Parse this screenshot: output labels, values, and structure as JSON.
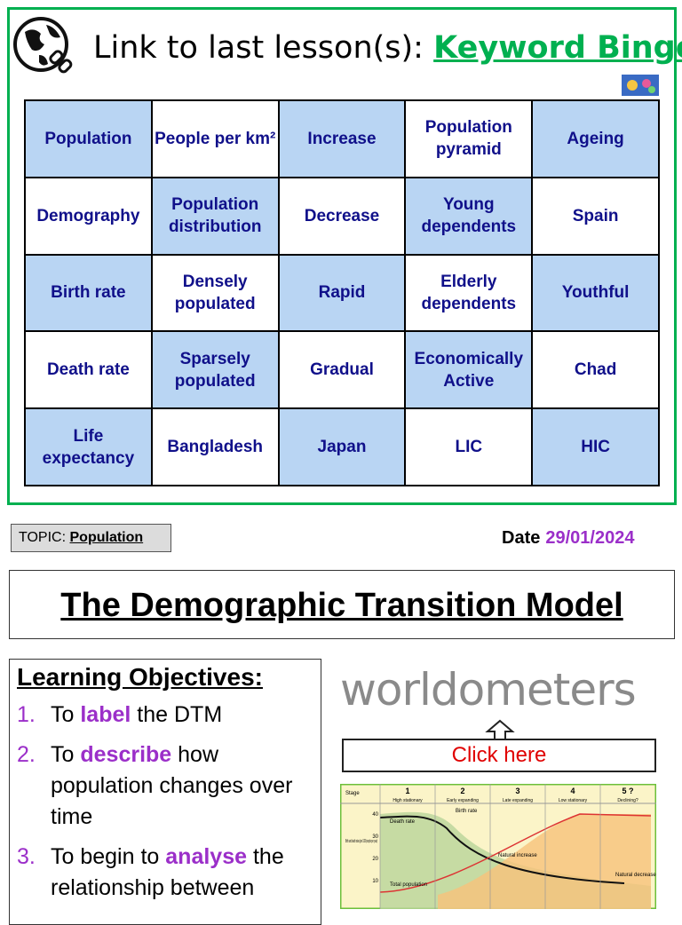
{
  "header": {
    "lead": "Link to last lesson(s):",
    "link": "Keyword Bingo"
  },
  "bingo": {
    "rows": [
      [
        "Population",
        "People per km²",
        "Increase",
        "Population pyramid",
        "Ageing"
      ],
      [
        "Demography",
        "Population distribution",
        "Decrease",
        "Young dependents",
        "Spain"
      ],
      [
        "Birth rate",
        "Densely populated",
        "Rapid",
        "Elderly dependents",
        "Youthful"
      ],
      [
        "Death rate",
        "Sparsely populated",
        "Gradual",
        "Economically Active",
        "Chad"
      ],
      [
        "Life expectancy",
        "Bangladesh",
        "Japan",
        "LIC",
        "HIC"
      ]
    ]
  },
  "topic": {
    "label": "TOPIC:",
    "value": "Population"
  },
  "date": {
    "label": "Date",
    "value": "29/01/2024"
  },
  "title": "The Demographic Transition Model",
  "objectives": {
    "heading": "Learning Objectives:",
    "items": [
      {
        "number": "1.",
        "before": "To",
        "keyword": "label",
        "after": "the DTM"
      },
      {
        "number": "2.",
        "before": "To",
        "keyword": "describe",
        "after": "how population changes over time"
      },
      {
        "number": "3.",
        "before": "To begin to",
        "keyword": "analyse",
        "after": "the relationship between"
      }
    ]
  },
  "worldometers": {
    "logo": "worldometers",
    "button": "Click here"
  },
  "dtm": {
    "stage_heading": "Stage",
    "stages": [
      {
        "number": "1",
        "name": "High stationary"
      },
      {
        "number": "2",
        "name": "Early expanding"
      },
      {
        "number": "3",
        "name": "Late expanding"
      },
      {
        "number": "4",
        "name": "Low stationary"
      },
      {
        "number": "5 ?",
        "name": "Declining?"
      }
    ],
    "y_axis_label": "Birth and death rates (per 1000 people per year)",
    "yticks": [
      "40",
      "30",
      "20",
      "10"
    ],
    "labels": {
      "birth_rate": "Birth rate",
      "death_rate": "Death rate",
      "natural_increase": "Natural increase",
      "total_population": "Total population",
      "natural_decrease": "Natural decrease"
    }
  }
}
